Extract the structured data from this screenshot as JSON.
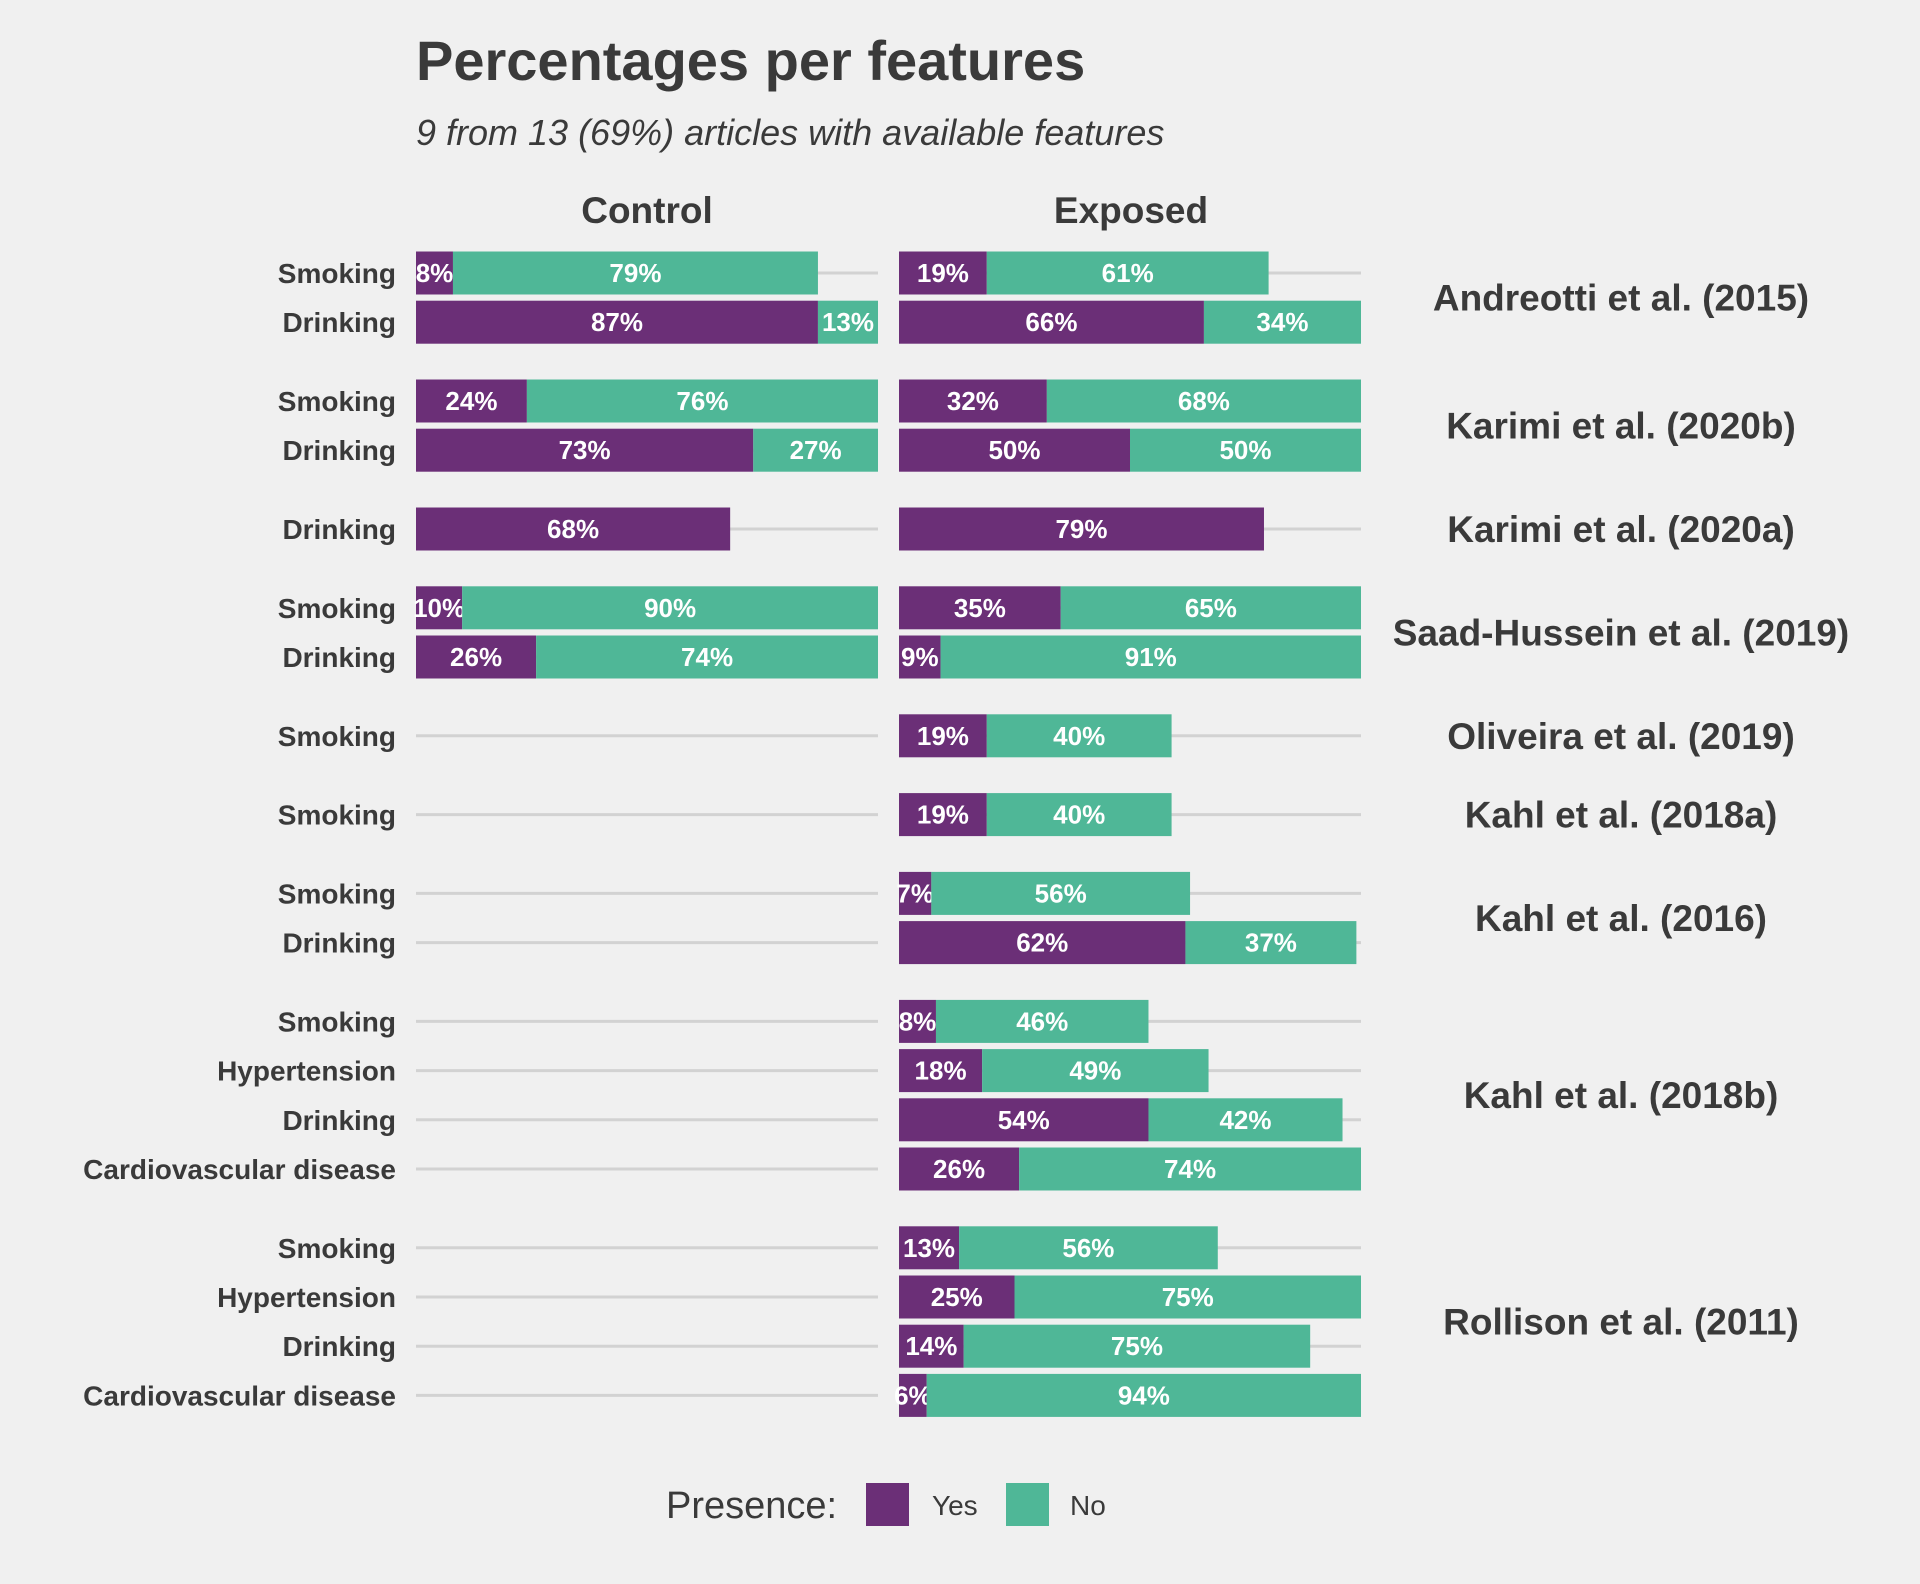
{
  "colors": {
    "yes": "#6b2f77",
    "no": "#4fb797",
    "text": "#3a3a3a",
    "grid": "#d2d2d2",
    "background": "#f0f0f0"
  },
  "chart_data": {
    "type": "bar",
    "orientation": "horizontal",
    "stacked": true,
    "title": "Percentages per features",
    "subtitle": "9 from 13 (69%) articles with available features",
    "facets": [
      "Control",
      "Exposed"
    ],
    "xlim": [
      0,
      100
    ],
    "grid": true,
    "legend": {
      "title": "Presence:",
      "position": "bottom",
      "items": [
        {
          "key": "yes",
          "label": "Yes"
        },
        {
          "key": "no",
          "label": "No"
        }
      ]
    },
    "groups": [
      {
        "study": "Andreotti et al. (2015)",
        "rows": [
          {
            "feature": "Smoking",
            "control": {
              "yes": 8,
              "no": 79
            },
            "exposed": {
              "yes": 19,
              "no": 61
            }
          },
          {
            "feature": "Drinking",
            "control": {
              "yes": 87,
              "no": 13
            },
            "exposed": {
              "yes": 66,
              "no": 34
            }
          }
        ]
      },
      {
        "study": "Karimi et al. (2020b)",
        "rows": [
          {
            "feature": "Smoking",
            "control": {
              "yes": 24,
              "no": 76
            },
            "exposed": {
              "yes": 32,
              "no": 68
            }
          },
          {
            "feature": "Drinking",
            "control": {
              "yes": 73,
              "no": 27
            },
            "exposed": {
              "yes": 50,
              "no": 50
            }
          }
        ]
      },
      {
        "study": "Karimi et al. (2020a)",
        "rows": [
          {
            "feature": "Drinking",
            "control": {
              "yes": 68,
              "no": null
            },
            "exposed": {
              "yes": 79,
              "no": null
            }
          }
        ]
      },
      {
        "study": "Saad-Hussein et al. (2019)",
        "rows": [
          {
            "feature": "Smoking",
            "control": {
              "yes": 10,
              "no": 90
            },
            "exposed": {
              "yes": 35,
              "no": 65
            }
          },
          {
            "feature": "Drinking",
            "control": {
              "yes": 26,
              "no": 74
            },
            "exposed": {
              "yes": 9,
              "no": 91
            }
          }
        ]
      },
      {
        "study": "Oliveira et al. (2019)",
        "rows": [
          {
            "feature": "Smoking",
            "control": null,
            "exposed": {
              "yes": 19,
              "no": 40
            }
          }
        ]
      },
      {
        "study": "Kahl et al. (2018a)",
        "rows": [
          {
            "feature": "Smoking",
            "control": null,
            "exposed": {
              "yes": 19,
              "no": 40
            }
          }
        ]
      },
      {
        "study": "Kahl et al. (2016)",
        "rows": [
          {
            "feature": "Smoking",
            "control": null,
            "exposed": {
              "yes": 7,
              "no": 56
            }
          },
          {
            "feature": "Drinking",
            "control": null,
            "exposed": {
              "yes": 62,
              "no": 37
            }
          }
        ]
      },
      {
        "study": "Kahl et al. (2018b)",
        "rows": [
          {
            "feature": "Smoking",
            "control": null,
            "exposed": {
              "yes": 8,
              "no": 46
            }
          },
          {
            "feature": "Hypertension",
            "control": null,
            "exposed": {
              "yes": 18,
              "no": 49
            }
          },
          {
            "feature": "Drinking",
            "control": null,
            "exposed": {
              "yes": 54,
              "no": 42
            }
          },
          {
            "feature": "Cardiovascular disease",
            "control": null,
            "exposed": {
              "yes": 26,
              "no": 74
            }
          }
        ]
      },
      {
        "study": "Rollison et al. (2011)",
        "rows": [
          {
            "feature": "Smoking",
            "control": null,
            "exposed": {
              "yes": 13,
              "no": 56
            }
          },
          {
            "feature": "Hypertension",
            "control": null,
            "exposed": {
              "yes": 25,
              "no": 75
            }
          },
          {
            "feature": "Drinking",
            "control": null,
            "exposed": {
              "yes": 14,
              "no": 75
            }
          },
          {
            "feature": "Cardiovascular disease",
            "control": null,
            "exposed": {
              "yes": 6,
              "no": 94
            }
          }
        ]
      }
    ]
  }
}
